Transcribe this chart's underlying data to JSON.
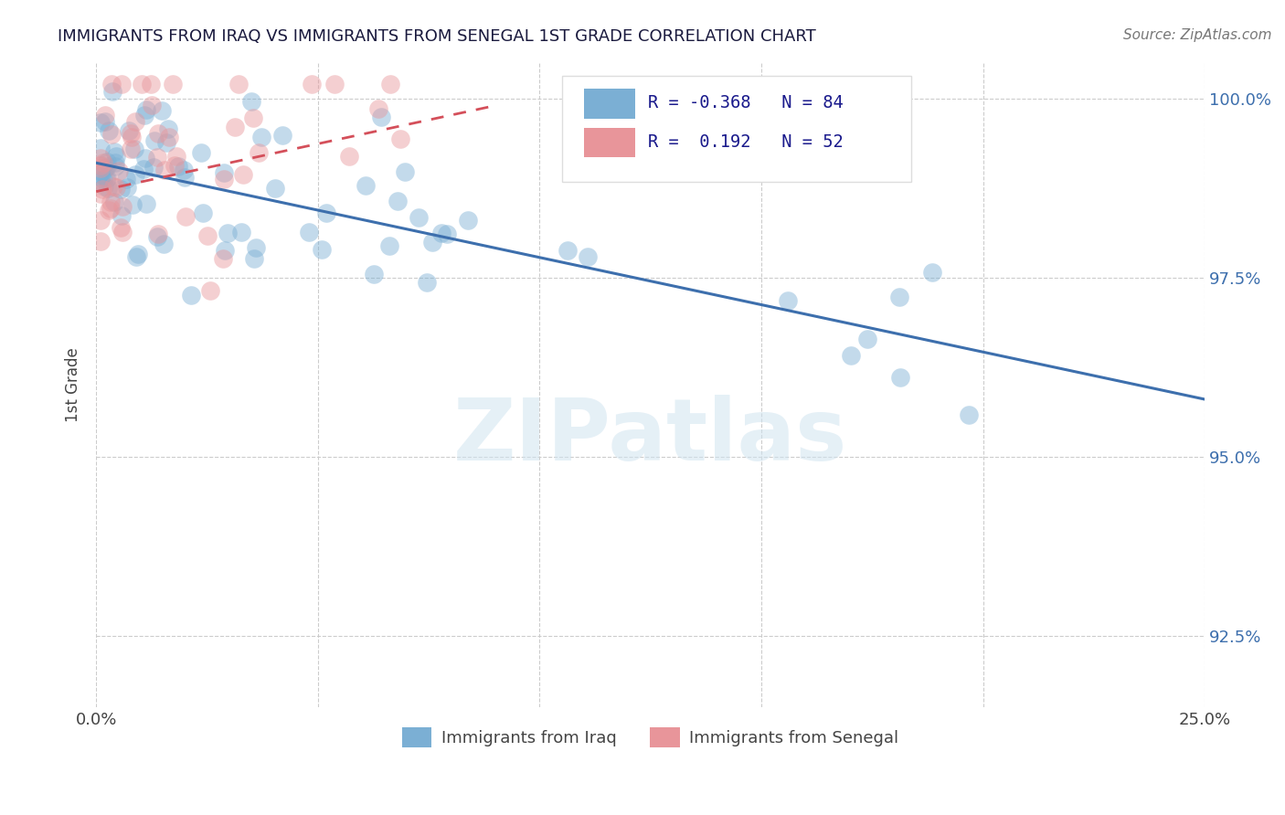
{
  "title": "IMMIGRANTS FROM IRAQ VS IMMIGRANTS FROM SENEGAL 1ST GRADE CORRELATION CHART",
  "source": "Source: ZipAtlas.com",
  "ylabel": "1st Grade",
  "xlim": [
    0.0,
    0.25
  ],
  "ylim": [
    0.915,
    1.005
  ],
  "xtick_positions": [
    0.0,
    0.05,
    0.1,
    0.15,
    0.2,
    0.25
  ],
  "xtick_labels": [
    "0.0%",
    "",
    "",
    "",
    "",
    "25.0%"
  ],
  "ytick_positions": [
    0.925,
    0.95,
    0.975,
    1.0
  ],
  "ytick_labels": [
    "92.5%",
    "95.0%",
    "97.5%",
    "100.0%"
  ],
  "iraq_color": "#7bafd4",
  "senegal_color": "#e8959a",
  "iraq_line_color": "#3d6fad",
  "senegal_line_color": "#d44f5a",
  "legend_iraq_R": "-0.368",
  "legend_iraq_N": "84",
  "legend_senegal_R": "0.192",
  "legend_senegal_N": "52",
  "watermark_text": "ZIPatlas",
  "iraq_line_x0": 0.0,
  "iraq_line_y0": 0.991,
  "iraq_line_x1": 0.25,
  "iraq_line_y1": 0.958,
  "senegal_line_x0": 0.0,
  "senegal_line_y0": 0.987,
  "senegal_line_x1": 0.09,
  "senegal_line_y1": 0.999
}
